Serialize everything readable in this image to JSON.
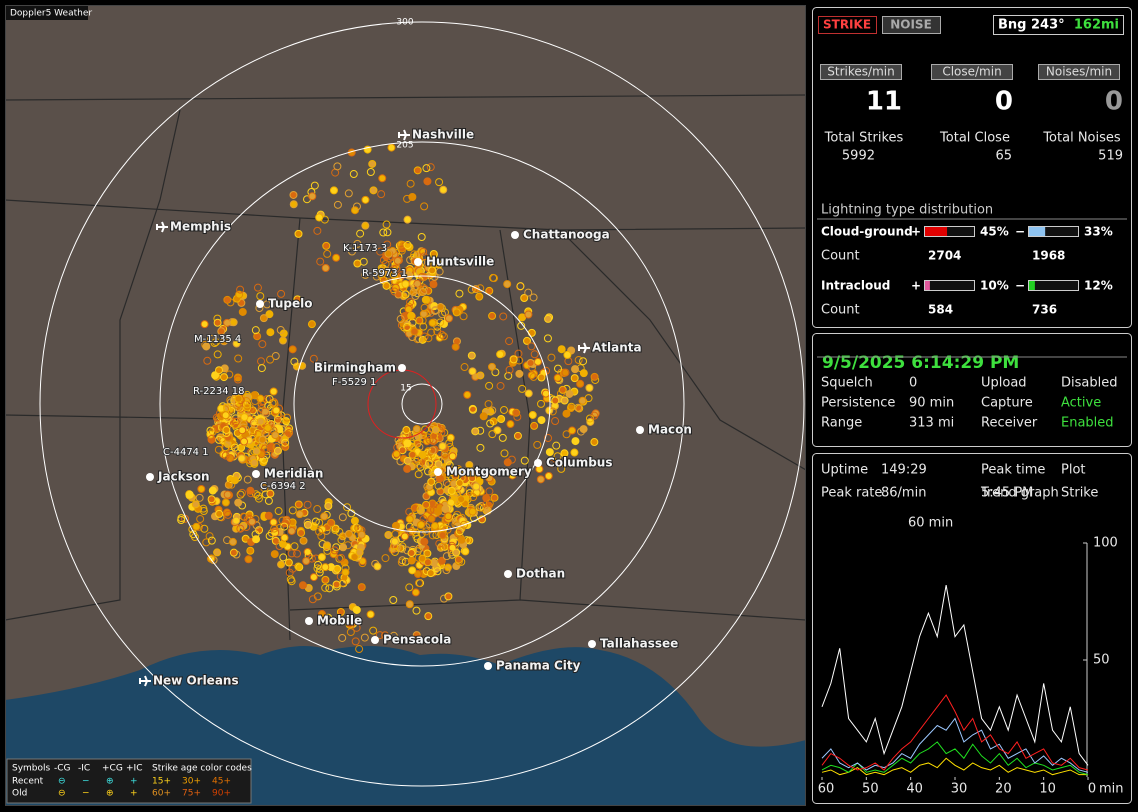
{
  "app_title": "Doppler5 Weather",
  "map": {
    "ring_labels": [
      "300",
      "205",
      "15"
    ],
    "cities": [
      "Nashville",
      "Memphis",
      "Chattanooga",
      "Huntsville",
      "Tupelo",
      "Atlanta",
      "Birmingham",
      "Macon",
      "Jackson",
      "Meridian",
      "Montgomery",
      "Columbus",
      "Dothan",
      "Mobile",
      "Pensacola",
      "Tallahassee",
      "Panama City",
      "New Orleans"
    ],
    "storm_labels": [
      "K-1173 3",
      "R-5973 1",
      "M-1135 4",
      "R-2234 18",
      "C-4474 1",
      "C-6394 2",
      "F-5529 1"
    ],
    "legend": {
      "symbols": "Symbols",
      "types": [
        "-CG",
        "-IC",
        "+CG",
        "+IC"
      ],
      "age_title": "Strike age color codes",
      "rows": [
        "Recent",
        "Old"
      ],
      "ages": [
        [
          "15+",
          "30+",
          "45+"
        ],
        [
          "60+",
          "75+",
          "90+"
        ]
      ]
    }
  },
  "status": {
    "strike": "STRIKE",
    "noise": "NOISE",
    "bearing": "Bng 243°",
    "distance": "162mi"
  },
  "rates": [
    {
      "label": "Strikes/min",
      "value": 11,
      "total_label": "Total Strikes",
      "total": 5992
    },
    {
      "label": "Close/min",
      "value": 0,
      "total_label": "Total Close",
      "total": 65
    },
    {
      "label": "Noises/min",
      "value": 0,
      "total_label": "Total Noises",
      "total": 519
    }
  ],
  "distribution": {
    "title": "Lightning type distribution",
    "plus": "+",
    "minus": "−",
    "count_label": "Count",
    "rows": [
      {
        "name": "Cloud-ground",
        "values": [
          45,
          33
        ],
        "value_labels": [
          "45%",
          "33%"
        ],
        "counts": [
          2704,
          1968
        ],
        "colors": [
          "#e00000",
          "#8ec3f0"
        ]
      },
      {
        "name": "Intracloud",
        "values": [
          10,
          12
        ],
        "value_labels": [
          "10%",
          "12%"
        ],
        "counts": [
          584,
          736
        ],
        "colors": [
          "#e05a9c",
          "#22d022"
        ]
      }
    ]
  },
  "clock": "9/5/2025 6:14:29 PM",
  "settings": [
    {
      "label": "Squelch",
      "value": 0
    },
    {
      "label": "Upload",
      "value": "Disabled"
    },
    {
      "label": "Persistence",
      "value": "90 min"
    },
    {
      "label": "Capture",
      "value": "Active"
    },
    {
      "label": "Range",
      "value": "313 mi"
    },
    {
      "label": "Receiver",
      "value": "Enabled"
    }
  ],
  "stats": [
    {
      "label": "Uptime",
      "value": "149:29"
    },
    {
      "label": "Peak time",
      "value": "5:45 PM"
    },
    {
      "label": "Plot",
      "value": "Strike"
    },
    {
      "label": "Peak rate",
      "value": "86/min"
    },
    {
      "label": "Trend graph",
      "value": "60 min"
    }
  ],
  "trend_graph": {
    "type": "line",
    "x_unit": "min",
    "x": [
      60,
      58,
      56,
      54,
      52,
      50,
      48,
      46,
      44,
      42,
      40,
      38,
      36,
      34,
      32,
      30,
      28,
      26,
      24,
      22,
      20,
      18,
      16,
      14,
      12,
      10,
      8,
      6,
      4,
      2,
      0
    ],
    "xlim": [
      60,
      0
    ],
    "xticks": [
      60,
      50,
      40,
      30,
      20,
      10,
      0
    ],
    "ylim": [
      0,
      100
    ],
    "yticks": [
      50,
      100
    ],
    "series": [
      {
        "name": "Strike",
        "color": "#ffffff",
        "values": [
          30,
          40,
          55,
          25,
          20,
          15,
          25,
          10,
          20,
          30,
          45,
          60,
          70,
          60,
          82,
          60,
          65,
          45,
          25,
          20,
          30,
          20,
          35,
          25,
          15,
          40,
          20,
          15,
          30,
          10,
          5
        ]
      },
      {
        "name": "-CG",
        "color": "#ff2020",
        "values": [
          5,
          10,
          8,
          5,
          3,
          4,
          6,
          3,
          8,
          12,
          15,
          20,
          25,
          30,
          35,
          28,
          20,
          25,
          15,
          18,
          12,
          10,
          15,
          8,
          10,
          12,
          6,
          5,
          8,
          4,
          3
        ]
      },
      {
        "name": "+CG",
        "color": "#9cc8ff",
        "values": [
          8,
          12,
          6,
          4,
          6,
          3,
          5,
          4,
          6,
          10,
          8,
          14,
          18,
          22,
          20,
          25,
          15,
          18,
          20,
          12,
          14,
          8,
          10,
          12,
          6,
          9,
          5,
          8,
          6,
          3,
          2
        ]
      },
      {
        "name": "-IC",
        "color": "#20e020",
        "values": [
          3,
          5,
          4,
          2,
          6,
          2,
          3,
          2,
          5,
          8,
          6,
          10,
          12,
          15,
          10,
          12,
          8,
          14,
          9,
          6,
          10,
          5,
          8,
          4,
          6,
          5,
          3,
          4,
          5,
          2,
          1
        ]
      },
      {
        "name": "+IC",
        "color": "#ffe000",
        "values": [
          2,
          3,
          1,
          2,
          4,
          1,
          2,
          1,
          3,
          4,
          2,
          5,
          6,
          4,
          8,
          5,
          3,
          6,
          4,
          3,
          5,
          2,
          4,
          3,
          2,
          3,
          1,
          2,
          3,
          1,
          1
        ]
      }
    ]
  }
}
